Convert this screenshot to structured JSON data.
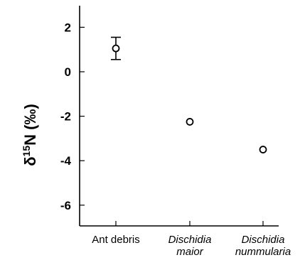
{
  "chart_data": {
    "type": "scatter",
    "title": "",
    "xlabel": "",
    "ylabel": {
      "prefix": "δ",
      "superscript": "15",
      "main": "N (‰)"
    },
    "ylim": [
      -7,
      3
    ],
    "yticks": [
      2,
      0,
      -2,
      -4,
      -6
    ],
    "ytick_labels": [
      "2",
      "0",
      "-2",
      "-4",
      "-6"
    ],
    "grid": false,
    "categories": [
      {
        "lines": [
          "Ant debris"
        ],
        "italic": false
      },
      {
        "lines": [
          "Dischidia",
          "maior"
        ],
        "italic": true
      },
      {
        "lines": [
          "Dischidia",
          "nummularia"
        ],
        "italic": true
      }
    ],
    "points": [
      {
        "category": "Ant debris",
        "value": 1.05,
        "error": 0.5
      },
      {
        "category": "Dischidia maior",
        "value": -2.25,
        "error": 0
      },
      {
        "category": "Dischidia nummularia",
        "value": -3.5,
        "error": 0
      }
    ]
  }
}
